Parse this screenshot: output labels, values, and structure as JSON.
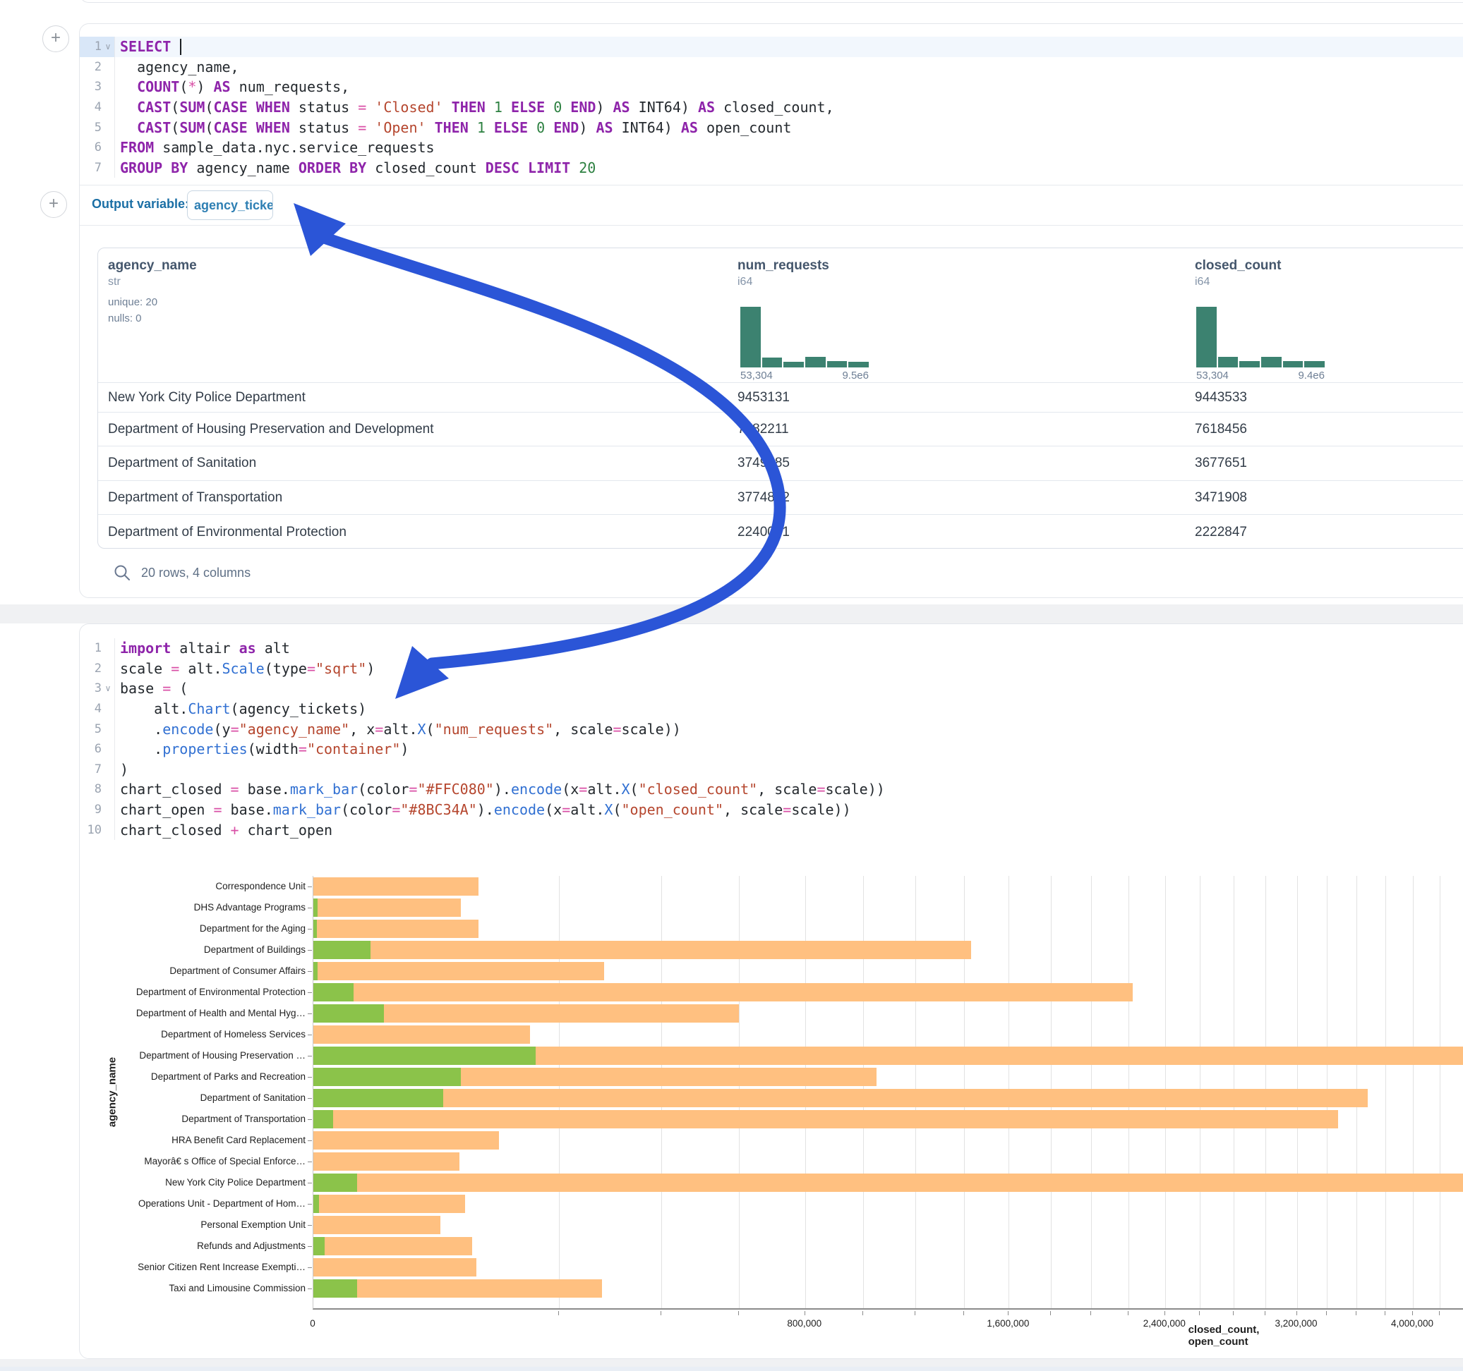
{
  "output_bar": {
    "label": "Output variable:",
    "variable": "agency_tickets"
  },
  "editor": {
    "sql": {
      "lines": [
        {
          "n": "1",
          "chevron": true,
          "active": true,
          "caret": true,
          "tokens": [
            [
              "kw",
              "SELECT"
            ],
            [
              "plain",
              " "
            ]
          ]
        },
        {
          "n": "2",
          "tokens": [
            [
              "plain",
              "  agency_name,"
            ]
          ]
        },
        {
          "n": "3",
          "tokens": [
            [
              "plain",
              "  "
            ],
            [
              "kw",
              "COUNT"
            ],
            [
              "plain",
              "("
            ],
            [
              "op",
              "*"
            ],
            [
              "plain",
              ") "
            ],
            [
              "kw",
              "AS"
            ],
            [
              "plain",
              " num_requests,"
            ]
          ]
        },
        {
          "n": "4",
          "tokens": [
            [
              "plain",
              "  "
            ],
            [
              "kw",
              "CAST"
            ],
            [
              "plain",
              "("
            ],
            [
              "kw",
              "SUM"
            ],
            [
              "plain",
              "("
            ],
            [
              "kw",
              "CASE"
            ],
            [
              "plain",
              " "
            ],
            [
              "kw",
              "WHEN"
            ],
            [
              "plain",
              " status "
            ],
            [
              "op",
              "="
            ],
            [
              "plain",
              " "
            ],
            [
              "str",
              "'Closed'"
            ],
            [
              "plain",
              " "
            ],
            [
              "kw",
              "THEN"
            ],
            [
              "plain",
              " "
            ],
            [
              "num",
              "1"
            ],
            [
              "plain",
              " "
            ],
            [
              "kw",
              "ELSE"
            ],
            [
              "plain",
              " "
            ],
            [
              "num",
              "0"
            ],
            [
              "plain",
              " "
            ],
            [
              "kw",
              "END"
            ],
            [
              "plain",
              ") "
            ],
            [
              "kw",
              "AS"
            ],
            [
              "plain",
              " INT64) "
            ],
            [
              "kw",
              "AS"
            ],
            [
              "plain",
              " closed_count,"
            ]
          ]
        },
        {
          "n": "5",
          "tokens": [
            [
              "plain",
              "  "
            ],
            [
              "kw",
              "CAST"
            ],
            [
              "plain",
              "("
            ],
            [
              "kw",
              "SUM"
            ],
            [
              "plain",
              "("
            ],
            [
              "kw",
              "CASE"
            ],
            [
              "plain",
              " "
            ],
            [
              "kw",
              "WHEN"
            ],
            [
              "plain",
              " status "
            ],
            [
              "op",
              "="
            ],
            [
              "plain",
              " "
            ],
            [
              "str",
              "'Open'"
            ],
            [
              "plain",
              " "
            ],
            [
              "kw",
              "THEN"
            ],
            [
              "plain",
              " "
            ],
            [
              "num",
              "1"
            ],
            [
              "plain",
              " "
            ],
            [
              "kw",
              "ELSE"
            ],
            [
              "plain",
              " "
            ],
            [
              "num",
              "0"
            ],
            [
              "plain",
              " "
            ],
            [
              "kw",
              "END"
            ],
            [
              "plain",
              ") "
            ],
            [
              "kw",
              "AS"
            ],
            [
              "plain",
              " INT64) "
            ],
            [
              "kw",
              "AS"
            ],
            [
              "plain",
              " open_count"
            ]
          ]
        },
        {
          "n": "6",
          "tokens": [
            [
              "kw",
              "FROM"
            ],
            [
              "plain",
              " sample_data.nyc.service_requests"
            ]
          ]
        },
        {
          "n": "7",
          "tokens": [
            [
              "kw",
              "GROUP BY"
            ],
            [
              "plain",
              " agency_name "
            ],
            [
              "kw",
              "ORDER BY"
            ],
            [
              "plain",
              " closed_count "
            ],
            [
              "kw",
              "DESC"
            ],
            [
              "plain",
              " "
            ],
            [
              "kw",
              "LIMIT"
            ],
            [
              "plain",
              " "
            ],
            [
              "num",
              "20"
            ]
          ]
        }
      ]
    },
    "python": {
      "lines": [
        {
          "n": "1",
          "tokens": [
            [
              "kw",
              "import"
            ],
            [
              "plain",
              " altair "
            ],
            [
              "kw",
              "as"
            ],
            [
              "plain",
              " alt"
            ]
          ]
        },
        {
          "n": "2",
          "tokens": [
            [
              "plain",
              "scale "
            ],
            [
              "op",
              "="
            ],
            [
              "plain",
              " alt."
            ],
            [
              "fn",
              "Scale"
            ],
            [
              "plain",
              "(type"
            ],
            [
              "op",
              "="
            ],
            [
              "str",
              "\"sqrt\""
            ],
            [
              "plain",
              ")"
            ]
          ]
        },
        {
          "n": "3",
          "chevron": true,
          "tokens": [
            [
              "plain",
              "base "
            ],
            [
              "op",
              "="
            ],
            [
              "plain",
              " ("
            ]
          ]
        },
        {
          "n": "4",
          "tokens": [
            [
              "plain",
              "    alt."
            ],
            [
              "fn",
              "Chart"
            ],
            [
              "plain",
              "(agency_tickets)"
            ]
          ]
        },
        {
          "n": "5",
          "tokens": [
            [
              "plain",
              "    ."
            ],
            [
              "fn",
              "encode"
            ],
            [
              "plain",
              "(y"
            ],
            [
              "op",
              "="
            ],
            [
              "str",
              "\"agency_name\""
            ],
            [
              "plain",
              ", x"
            ],
            [
              "op",
              "="
            ],
            [
              "plain",
              "alt."
            ],
            [
              "fn",
              "X"
            ],
            [
              "plain",
              "("
            ],
            [
              "str",
              "\"num_requests\""
            ],
            [
              "plain",
              ", scale"
            ],
            [
              "op",
              "="
            ],
            [
              "plain",
              "scale))"
            ]
          ]
        },
        {
          "n": "6",
          "tokens": [
            [
              "plain",
              "    ."
            ],
            [
              "fn",
              "properties"
            ],
            [
              "plain",
              "(width"
            ],
            [
              "op",
              "="
            ],
            [
              "str",
              "\"container\""
            ],
            [
              "plain",
              ")"
            ]
          ]
        },
        {
          "n": "7",
          "tokens": [
            [
              "plain",
              ")"
            ]
          ]
        },
        {
          "n": "8",
          "tokens": [
            [
              "plain",
              "chart_closed "
            ],
            [
              "op",
              "="
            ],
            [
              "plain",
              " base."
            ],
            [
              "fn",
              "mark_bar"
            ],
            [
              "plain",
              "(color"
            ],
            [
              "op",
              "="
            ],
            [
              "str",
              "\"#FFC080\""
            ],
            [
              "plain",
              ")."
            ],
            [
              "fn",
              "encode"
            ],
            [
              "plain",
              "(x"
            ],
            [
              "op",
              "="
            ],
            [
              "plain",
              "alt."
            ],
            [
              "fn",
              "X"
            ],
            [
              "plain",
              "("
            ],
            [
              "str",
              "\"closed_count\""
            ],
            [
              "plain",
              ", scale"
            ],
            [
              "op",
              "="
            ],
            [
              "plain",
              "scale))"
            ]
          ]
        },
        {
          "n": "9",
          "tokens": [
            [
              "plain",
              "chart_open "
            ],
            [
              "op",
              "="
            ],
            [
              "plain",
              " base."
            ],
            [
              "fn",
              "mark_bar"
            ],
            [
              "plain",
              "(color"
            ],
            [
              "op",
              "="
            ],
            [
              "str",
              "\"#8BC34A\""
            ],
            [
              "plain",
              ")."
            ],
            [
              "fn",
              "encode"
            ],
            [
              "plain",
              "(x"
            ],
            [
              "op",
              "="
            ],
            [
              "plain",
              "alt."
            ],
            [
              "fn",
              "X"
            ],
            [
              "plain",
              "("
            ],
            [
              "str",
              "\"open_count\""
            ],
            [
              "plain",
              ", scale"
            ],
            [
              "op",
              "="
            ],
            [
              "plain",
              "scale))"
            ]
          ]
        },
        {
          "n": "10",
          "tokens": [
            [
              "plain",
              "chart_closed "
            ],
            [
              "op",
              "+"
            ],
            [
              "plain",
              " chart_open"
            ]
          ]
        }
      ]
    }
  },
  "table": {
    "columns": [
      {
        "name": "agency_name",
        "type": "str",
        "stats": [
          "unique: 20",
          "nulls: 0"
        ]
      },
      {
        "name": "num_requests",
        "type": "i64",
        "hist": [
          1,
          0.16,
          0.09,
          0.17,
          0.1,
          0.09
        ],
        "min_label": "53,304",
        "max_label": "9.5e6"
      },
      {
        "name": "closed_count",
        "type": "i64",
        "hist": [
          1,
          0.17,
          0.1,
          0.17,
          0.1,
          0.1
        ],
        "min_label": "53,304",
        "max_label": "9.4e6"
      }
    ],
    "rows": [
      [
        "New York City Police Department",
        "9453131",
        "9443533"
      ],
      [
        "Department of Housing Preservation and Development",
        "7782211",
        "7618456"
      ],
      [
        "Department of Sanitation",
        "3749485",
        "3677651"
      ],
      [
        "Department of Transportation",
        "3774892",
        "3471908"
      ],
      [
        "Department of Environmental Protection",
        "2240041",
        "2222847"
      ]
    ],
    "footer": "20 rows, 4 columns",
    "hist_color": "#3c8270"
  },
  "chart_data": {
    "type": "bar",
    "orientation": "horizontal",
    "scale_type": "sqrt",
    "xlabel": "closed_count, open_count",
    "ylabel": "agency_name",
    "x_major_ticks": [
      0,
      800000,
      1600000,
      2400000,
      3200000,
      4000000
    ],
    "x_gridline_step": 200000,
    "legend_position": "none",
    "series": [
      {
        "name": "closed_count",
        "color": "#FFC080"
      },
      {
        "name": "open_count",
        "color": "#8BC34A"
      }
    ],
    "categories": [
      "Correspondence Unit",
      "DHS Advantage Programs",
      "Department for the Aging",
      "Department of Buildings",
      "Department of Consumer Affairs",
      "Department of Environmental Protection",
      "Department of Health and Mental Hyg…",
      "Department of Homeless Services",
      "Department of Housing Preservation …",
      "Department of Parks and Recreation",
      "Department of Sanitation",
      "Department of Transportation",
      "HRA Benefit Card Replacement",
      "Mayorâ€ s Office of Special Enforce…",
      "New York City Police Department",
      "Operations Unit - Department of Hom…",
      "Personal Exemption Unit",
      "Refunds and Adjustments",
      "Senior Citizen Rent Increase Exempti…",
      "Taxi and Limousine Commission"
    ],
    "closed_values": [
      90000,
      72000,
      90500,
      1430000,
      280000,
      2222847,
      600000,
      155000,
      7618456,
      1050000,
      3677651,
      3471908,
      114000,
      70600,
      9443533,
      76000,
      53304,
      83400,
      87600,
      276000
    ],
    "open_values": [
      0,
      60,
      40,
      10700,
      50,
      5400,
      16600,
      0,
      163755,
      72000,
      56000,
      1250,
      0,
      0,
      6250,
      110,
      0,
      420,
      0,
      6250
    ]
  },
  "annotation": {
    "arrow_color": "#2b55d7"
  }
}
